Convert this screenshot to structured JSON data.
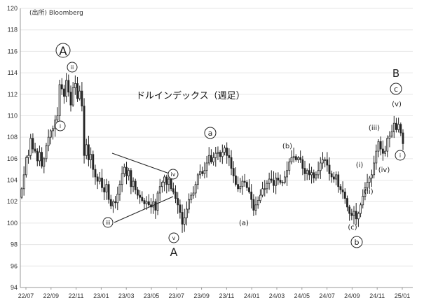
{
  "source": "(出所) Bloomberg",
  "chart_data": {
    "type": "candlestick",
    "title": "ドルインデックス（週足）",
    "ylim": [
      94,
      120
    ],
    "yticks": [
      94,
      96,
      98,
      100,
      102,
      104,
      106,
      108,
      110,
      112,
      114,
      116,
      118,
      120
    ],
    "xtick_labels": [
      "22/07",
      "22/09",
      "22/11",
      "23/01",
      "23/03",
      "23/05",
      "23/07",
      "23/09",
      "23/11",
      "24/01",
      "24/03",
      "24/05",
      "24/07",
      "24/09",
      "24/11",
      "25/01"
    ],
    "x_start": "2022-07",
    "weekly_close": [
      103.2,
      104.5,
      106.1,
      106.3,
      107.9,
      106.9,
      106.7,
      105.8,
      106.6,
      105.3,
      106.0,
      107.2,
      108.0,
      108.6,
      108.8,
      109.6,
      110.0,
      112.9,
      112.5,
      111.8,
      113.3,
      112.2,
      111.0,
      112.6,
      113.0,
      111.6,
      112.3,
      110.9,
      106.3,
      107.3,
      105.9,
      106.4,
      105.0,
      104.3,
      103.9,
      104.2,
      103.3,
      102.9,
      103.6,
      102.2,
      101.6,
      102.0,
      101.9,
      102.7,
      103.6,
      104.6,
      105.2,
      104.4,
      104.9,
      103.4,
      103.9,
      103.1,
      102.6,
      102.4,
      102.1,
      101.8,
      102.0,
      101.7,
      101.5,
      102.0,
      101.2,
      102.8,
      103.4,
      103.8,
      104.3,
      103.6,
      104.1,
      103.2,
      102.9,
      102.3,
      101.7,
      101.0,
      99.9,
      100.5,
      101.3,
      102.2,
      102.6,
      102.8,
      103.6,
      104.5,
      104.8,
      104.6,
      104.9,
      105.6,
      106.3,
      105.7,
      106.1,
      106.5,
      106.6,
      106.2,
      106.6,
      107.0,
      106.3,
      106.1,
      105.1,
      104.4,
      103.6,
      103.2,
      103.4,
      103.9,
      103.8,
      103.3,
      102.9,
      102.2,
      101.2,
      101.7,
      102.1,
      102.6,
      103.2,
      103.2,
      103.7,
      104.1,
      104.0,
      103.5,
      104.2,
      104.0,
      103.8,
      103.8,
      104.3,
      104.9,
      105.7,
      106.1,
      106.2,
      105.9,
      106.1,
      105.9,
      105.1,
      104.6,
      104.9,
      104.5,
      104.7,
      104.2,
      104.5,
      104.9,
      105.6,
      105.9,
      105.9,
      105.4,
      104.6,
      104.3,
      104.1,
      104.5,
      103.4,
      103.1,
      102.9,
      102.3,
      101.5,
      100.9,
      100.7,
      101.1,
      100.4,
      100.9,
      101.7,
      102.5,
      103.3,
      103.8,
      104.2,
      104.5,
      105.6,
      106.7,
      107.6,
      106.9,
      106.5,
      106.7,
      107.9,
      108.1,
      108.5,
      109.3,
      108.7,
      109.2,
      108.4,
      107.4
    ],
    "annotations": {
      "big_A_top": "A",
      "big_A_bottom": "A",
      "big_B": "B",
      "circled_a": "a",
      "circled_b": "b",
      "circled_c": "c",
      "ii": "ii",
      "i_left": "i",
      "iii_left": "iii",
      "iv_left": "iv",
      "v_left": "v",
      "wa": "(a)",
      "wb": "(b)",
      "wc": "(c)",
      "w_i": "(i)",
      "w_ii": "(ii)",
      "w_iii": "(iii)",
      "w_iv": "(iv)",
      "w_v": "(v)",
      "i_right": "i"
    }
  }
}
